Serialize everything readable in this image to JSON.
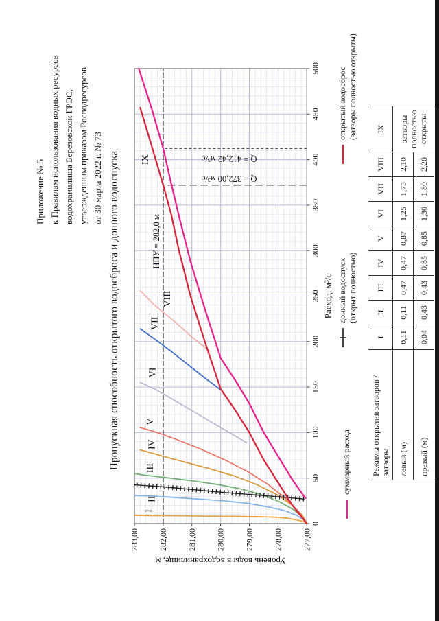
{
  "page": {
    "header_lines": [
      "Приложение № 5",
      "к Правилам использования водных ресурсов",
      "водохранилища Березовской ГРЭС,",
      "утвержденным приказом Росводресурсов",
      "от 30 марта 2022 г. № 73"
    ],
    "title": "Пропускная способность открытого водосброса и донного водоспуска"
  },
  "chart_data": {
    "type": "line",
    "title": "Пропускная способность открытого водосброса и донного водоспуска",
    "xlabel": "Расход, м³/с",
    "ylabel": "Уровень воды в водохранилище, м",
    "xlim": [
      0,
      500
    ],
    "ylim": [
      277,
      283
    ],
    "x_tick_step": 50,
    "x_minor_step": 10,
    "y_tick_step": 1,
    "y_minor_step": 0.2,
    "x_tick_labels": [
      "0",
      "50",
      "100",
      "150",
      "200",
      "250",
      "300",
      "350",
      "400",
      "450",
      "500"
    ],
    "y_tick_labels": [
      "277,00",
      "278,00",
      "279,00",
      "280,00",
      "281,00",
      "282,00",
      "283,00"
    ],
    "grid": true,
    "grid_minor_color": "#dcdaee",
    "grid_major_color": "#b9b6d8",
    "series": [
      {
        "name": "I",
        "color": "#EFA13C",
        "width": 1.7,
        "label": {
          "text": "I",
          "q": 14,
          "L": 282.42
        },
        "pts": [
          [
            0,
            277
          ],
          [
            2,
            277.1
          ],
          [
            4,
            277.35
          ],
          [
            6,
            277.7
          ],
          [
            7,
            278.1
          ],
          [
            7.6,
            278.7
          ],
          [
            8,
            279.5
          ],
          [
            8.2,
            280.5
          ],
          [
            8.5,
            281.5
          ],
          [
            8.7,
            282.3
          ],
          [
            8.9,
            283
          ]
        ]
      },
      {
        "name": "II",
        "color": "#7FB2E5",
        "width": 1.7,
        "label": {
          "text": "II",
          "q": 27,
          "L": 282.3
        },
        "pts": [
          [
            0,
            277
          ],
          [
            4,
            277.1
          ],
          [
            9,
            277.35
          ],
          [
            14,
            277.75
          ],
          [
            18,
            278.3
          ],
          [
            22,
            279
          ],
          [
            25,
            279.9
          ],
          [
            27,
            280.8
          ],
          [
            29,
            281.8
          ],
          [
            30.5,
            282.5
          ],
          [
            31,
            283
          ]
        ]
      },
      {
        "name": "III",
        "color": "#6FAE6F",
        "width": 1.7,
        "label": {
          "text": "III",
          "q": 61,
          "L": 282.35
        },
        "pts": [
          [
            0,
            277
          ],
          [
            7,
            277.15
          ],
          [
            15,
            277.45
          ],
          [
            24,
            277.95
          ],
          [
            32,
            278.6
          ],
          [
            38,
            279.3
          ],
          [
            43,
            280.1
          ],
          [
            47,
            281
          ],
          [
            50.5,
            281.9
          ],
          [
            53,
            282.6
          ],
          [
            55,
            283
          ]
        ]
      },
      {
        "name": "IV",
        "color": "#DB9832",
        "width": 1.7,
        "label": {
          "text": "IV",
          "q": 87,
          "L": 282.3
        },
        "pts": [
          [
            0,
            277
          ],
          [
            9,
            277.15
          ],
          [
            20,
            277.5
          ],
          [
            32,
            278.05
          ],
          [
            43,
            278.75
          ],
          [
            52,
            279.5
          ],
          [
            60,
            280.35
          ],
          [
            68,
            281.3
          ],
          [
            74,
            282
          ],
          [
            81,
            282.8
          ]
        ]
      },
      {
        "name": "V",
        "color": "#F0705F",
        "width": 1.7,
        "label": {
          "text": "V",
          "q": 112,
          "L": 282.35
        },
        "pts": [
          [
            0,
            277
          ],
          [
            12,
            277.25
          ],
          [
            28,
            277.75
          ],
          [
            43,
            278.35
          ],
          [
            57,
            279.05
          ],
          [
            70,
            279.85
          ],
          [
            82,
            280.7
          ],
          [
            92,
            281.5
          ],
          [
            100,
            282.2
          ],
          [
            105.5,
            282.8
          ]
        ]
      },
      {
        "name": "VI",
        "color": "#BCB5CF",
        "width": 1.7,
        "label": {
          "text": "VI",
          "q": 166,
          "L": 282.27
        },
        "pts": [
          [
            89,
            279.1
          ],
          [
            100,
            279.7
          ],
          [
            112,
            280.35
          ],
          [
            125,
            281.05
          ],
          [
            138,
            281.75
          ],
          [
            148,
            282.3
          ],
          [
            155,
            282.8
          ]
        ]
      },
      {
        "name": "VII",
        "color": "#4472C4",
        "width": 1.9,
        "label": {
          "text": "VII",
          "q": 220,
          "L": 282.2
        },
        "pts": [
          [
            147,
            280
          ],
          [
            160,
            280.55
          ],
          [
            175,
            281.15
          ],
          [
            190,
            281.75
          ],
          [
            204,
            282.35
          ],
          [
            214,
            282.8
          ]
        ]
      },
      {
        "name": "VIII",
        "color": "#F5AFAA",
        "width": 1.7,
        "label": {
          "text": "VIII",
          "q": 247,
          "L": 281.76
        },
        "pts": [
          [
            190,
            280.4
          ],
          [
            205,
            281
          ],
          [
            222,
            281.6
          ],
          [
            240,
            282.3
          ],
          [
            256,
            282.8
          ]
        ]
      },
      {
        "name": "донный водоспуск",
        "color": "#1b1b1b",
        "width": 1.4,
        "style": "ticked",
        "pts": [
          [
            27,
            277.1
          ],
          [
            29.5,
            278
          ],
          [
            32,
            279
          ],
          [
            34.5,
            280
          ],
          [
            37.5,
            281
          ],
          [
            40.4,
            282
          ],
          [
            42.5,
            283
          ]
        ]
      },
      {
        "name": "IX",
        "color": "#D3273B",
        "width": 2.3,
        "label": {
          "text": "IX",
          "q": 400,
          "L": 282.52
        },
        "pts": [
          [
            0,
            277
          ],
          [
            20,
            277.5
          ],
          [
            45,
            278
          ],
          [
            70,
            278.5
          ],
          [
            100,
            279
          ],
          [
            125,
            279.5
          ],
          [
            148,
            280
          ],
          [
            200,
            280.55
          ],
          [
            250,
            281.05
          ],
          [
            300,
            281.45
          ],
          [
            340,
            281.72
          ],
          [
            372,
            282
          ],
          [
            415,
            282.4
          ],
          [
            457,
            282.8
          ]
        ]
      },
      {
        "name": "суммарный расход",
        "color": "#E6238D",
        "width": 2.3,
        "pts": [
          [
            28,
            277.05
          ],
          [
            48,
            277.5
          ],
          [
            74,
            278
          ],
          [
            100,
            278.5
          ],
          [
            132,
            279
          ],
          [
            158,
            279.5
          ],
          [
            182,
            280
          ],
          [
            236,
            280.55
          ],
          [
            288,
            281.05
          ],
          [
            338,
            281.45
          ],
          [
            375,
            281.73
          ],
          [
            412.4,
            282
          ],
          [
            456,
            282.4
          ],
          [
            500,
            282.85
          ]
        ]
      }
    ],
    "annotations": {
      "npu_line": {
        "text": "НПУ = 282,0 м",
        "level": 282,
        "dash": "7,3",
        "label_q": 310
      },
      "q_lines": [
        {
          "text": "Q = 372,00 м³/с",
          "q": 372,
          "dash": "11,5",
          "label_q": 382,
          "label_L": 279.7
        },
        {
          "text": "Q = 412,42 м³/с",
          "q": 412.42,
          "dash": "4,3",
          "label_q": 404,
          "label_L": 279.7
        }
      ]
    },
    "legend_position": "bottom",
    "legend": [
      {
        "lines": [
          "суммарный расход"
        ],
        "color": "#E6238D",
        "style": "line"
      },
      {
        "lines": [
          "донный водоспуск",
          "(открыт полностью)"
        ],
        "color": "#1b1b1b",
        "style": "ticked"
      },
      {
        "lines": [
          "открытый водосброс",
          "(затворы полностью открыты)"
        ],
        "color": "#D3273B",
        "style": "line"
      }
    ]
  },
  "table": {
    "corner_lines": [
      "Режимы открытия затворов /",
      "затворы"
    ],
    "columns": [
      "I",
      "II",
      "III",
      "IV",
      "V",
      "VI",
      "VII",
      "VIII",
      "IX"
    ],
    "rows": [
      {
        "label": "левый (м)",
        "values": [
          "0,11",
          "0,11",
          "0,47",
          "0,47",
          "0,87",
          "1,25",
          "1,75",
          "2,10"
        ]
      },
      {
        "label": "правый (м)",
        "values": [
          "0,04",
          "0,43",
          "0,43",
          "0,85",
          "0,85",
          "1,30",
          "1,80",
          "2,20"
        ]
      }
    ],
    "merged_last_column": "затворы полностью открыты"
  }
}
